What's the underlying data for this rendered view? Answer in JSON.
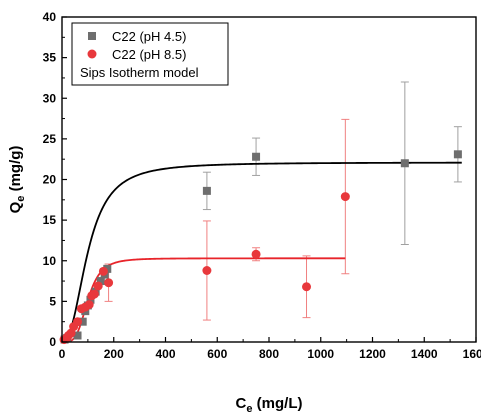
{
  "chart_data": {
    "type": "scatter",
    "xlabel_main": "C",
    "xlabel_sub": "e",
    "xlabel_unit": " (mg/L)",
    "ylabel_main": "Q",
    "ylabel_sub": "e",
    "ylabel_unit": " (mg/g)",
    "xlim": [
      0,
      1600
    ],
    "ylim": [
      0,
      40
    ],
    "x_ticks": [
      "0",
      "200",
      "400",
      "600",
      "800",
      "1000",
      "1200",
      "1400",
      "1600"
    ],
    "y_ticks": [
      "0",
      "5",
      "10",
      "15",
      "20",
      "25",
      "30",
      "35",
      "40"
    ],
    "legend_position": "top-left",
    "annotation": "Sips Isotherm model",
    "series": [
      {
        "name": "C22 (pH 4.5)",
        "marker": "square",
        "color": "#6e6e6e",
        "errorbar_color": "#a0a0a0",
        "points": [
          {
            "x": 10,
            "y": 0.3
          },
          {
            "x": 20,
            "y": 0.5
          },
          {
            "x": 60,
            "y": 0.8
          },
          {
            "x": 80,
            "y": 2.5
          },
          {
            "x": 90,
            "y": 3.8
          },
          {
            "x": 100,
            "y": 4.5
          },
          {
            "x": 110,
            "y": 5.2
          },
          {
            "x": 130,
            "y": 6.2
          },
          {
            "x": 150,
            "y": 7.5
          },
          {
            "x": 165,
            "y": 8.3
          },
          {
            "x": 175,
            "y": 9.0
          },
          {
            "x": 560,
            "y": 18.6,
            "err": 2.3
          },
          {
            "x": 750,
            "y": 22.8,
            "err": 2.3
          },
          {
            "x": 1325,
            "y": 22.0,
            "err": 10.0
          },
          {
            "x": 1530,
            "y": 23.1,
            "err": 3.4
          }
        ],
        "fit": {
          "qmax": 22.1,
          "b": 0.01,
          "n": 2.4,
          "xmin": 0,
          "xmax": 1545
        }
      },
      {
        "name": "C22 (pH 8.5)",
        "marker": "circle",
        "color": "#e8383c",
        "errorbar_color": "#f08080",
        "points": [
          {
            "x": 8,
            "y": 0.3
          },
          {
            "x": 18,
            "y": 0.5
          },
          {
            "x": 25,
            "y": 0.8
          },
          {
            "x": 35,
            "y": 1.1
          },
          {
            "x": 45,
            "y": 1.9
          },
          {
            "x": 60,
            "y": 2.5
          },
          {
            "x": 75,
            "y": 4.1
          },
          {
            "x": 90,
            "y": 4.3
          },
          {
            "x": 105,
            "y": 4.6
          },
          {
            "x": 115,
            "y": 5.7
          },
          {
            "x": 125,
            "y": 5.9
          },
          {
            "x": 140,
            "y": 6.9
          },
          {
            "x": 160,
            "y": 8.7
          },
          {
            "x": 180,
            "y": 7.3,
            "err": 2.3
          },
          {
            "x": 560,
            "y": 8.8,
            "err": 6.1
          },
          {
            "x": 750,
            "y": 10.8,
            "err": 0.8
          },
          {
            "x": 945,
            "y": 6.8,
            "err": 3.8
          },
          {
            "x": 1095,
            "y": 17.9,
            "err": 9.5
          }
        ],
        "fit": {
          "qmax": 10.3,
          "b": 0.01,
          "n": 4,
          "xmin": 0,
          "xmax": 1095
        }
      }
    ]
  }
}
